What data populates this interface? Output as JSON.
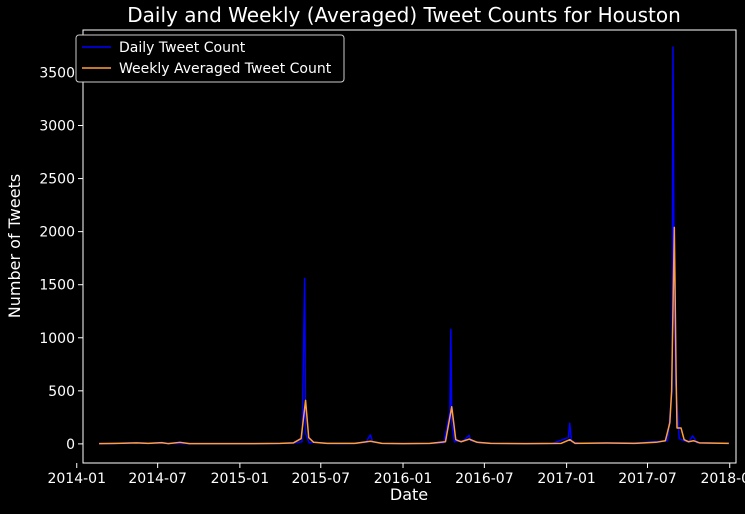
{
  "chart_data": {
    "type": "line",
    "title": "Daily and Weekly (Averaged) Tweet Counts for Houston",
    "xlabel": "Date",
    "ylabel": "Number of Tweets",
    "x_is_date": true,
    "xlim": [
      "2014-01-15",
      "2018-01-15"
    ],
    "ylim": [
      -180,
      3900
    ],
    "x_ticks": [
      "2014-01",
      "2014-07",
      "2015-01",
      "2015-07",
      "2016-01",
      "2016-07",
      "2017-01",
      "2017-07",
      "2018-01"
    ],
    "y_ticks": [
      0,
      500,
      1000,
      1500,
      2000,
      2500,
      3000,
      3500
    ],
    "grid": false,
    "legend_position": "top-left",
    "background_color": "#000000",
    "series": [
      {
        "name": "Daily Tweet Count",
        "color": "#0000ff",
        "points": [
          [
            "2014-02-20",
            5
          ],
          [
            "2014-03-20",
            3
          ],
          [
            "2014-04-25",
            10
          ],
          [
            "2014-05-15",
            12
          ],
          [
            "2014-06-10",
            6
          ],
          [
            "2014-07-10",
            8
          ],
          [
            "2014-08-15",
            4
          ],
          [
            "2014-09-10",
            3
          ],
          [
            "2014-10-15",
            2
          ],
          [
            "2014-12-01",
            2
          ],
          [
            "2015-02-01",
            3
          ],
          [
            "2015-04-01",
            5
          ],
          [
            "2015-05-01",
            8
          ],
          [
            "2015-05-20",
            20
          ],
          [
            "2015-05-26",
            1560
          ],
          [
            "2015-05-28",
            100
          ],
          [
            "2015-06-05",
            10
          ],
          [
            "2015-06-20",
            15
          ],
          [
            "2015-07-15",
            5
          ],
          [
            "2015-08-15",
            3
          ],
          [
            "2015-09-15",
            5
          ],
          [
            "2015-10-10",
            15
          ],
          [
            "2015-10-20",
            85
          ],
          [
            "2015-10-25",
            20
          ],
          [
            "2015-11-15",
            5
          ],
          [
            "2016-01-01",
            3
          ],
          [
            "2016-03-01",
            5
          ],
          [
            "2016-04-01",
            10
          ],
          [
            "2016-04-15",
            300
          ],
          [
            "2016-04-17",
            1080
          ],
          [
            "2016-04-19",
            200
          ],
          [
            "2016-04-25",
            20
          ],
          [
            "2016-05-15",
            30
          ],
          [
            "2016-05-28",
            80
          ],
          [
            "2016-06-01",
            30
          ],
          [
            "2016-06-20",
            10
          ],
          [
            "2016-08-01",
            5
          ],
          [
            "2016-10-01",
            3
          ],
          [
            "2016-12-01",
            5
          ],
          [
            "2017-01-05",
            60
          ],
          [
            "2017-01-08",
            195
          ],
          [
            "2017-01-12",
            20
          ],
          [
            "2017-02-01",
            5
          ],
          [
            "2017-04-01",
            10
          ],
          [
            "2017-06-01",
            8
          ],
          [
            "2017-07-15",
            20
          ],
          [
            "2017-08-15",
            30
          ],
          [
            "2017-08-25",
            500
          ],
          [
            "2017-08-27",
            3740
          ],
          [
            "2017-08-30",
            1200
          ],
          [
            "2017-09-02",
            580
          ],
          [
            "2017-09-10",
            50
          ],
          [
            "2017-09-20",
            30
          ],
          [
            "2017-10-01",
            20
          ],
          [
            "2017-10-10",
            75
          ],
          [
            "2017-10-20",
            10
          ],
          [
            "2017-12-30",
            5
          ]
        ]
      },
      {
        "name": "Weekly Averaged Tweet Count",
        "color": "#ff9f3a",
        "points": [
          [
            "2014-02-20",
            3
          ],
          [
            "2014-04-01",
            5
          ],
          [
            "2014-05-15",
            10
          ],
          [
            "2014-06-10",
            5
          ],
          [
            "2014-07-10",
            12
          ],
          [
            "2014-07-25",
            2
          ],
          [
            "2014-08-20",
            15
          ],
          [
            "2014-09-10",
            3
          ],
          [
            "2014-10-15",
            2
          ],
          [
            "2015-02-01",
            2
          ],
          [
            "2015-04-01",
            5
          ],
          [
            "2015-05-01",
            10
          ],
          [
            "2015-05-18",
            50
          ],
          [
            "2015-05-28",
            410
          ],
          [
            "2015-06-04",
            60
          ],
          [
            "2015-06-15",
            15
          ],
          [
            "2015-07-15",
            5
          ],
          [
            "2015-09-15",
            5
          ],
          [
            "2015-10-20",
            25
          ],
          [
            "2015-11-15",
            5
          ],
          [
            "2016-01-01",
            3
          ],
          [
            "2016-03-01",
            5
          ],
          [
            "2016-04-05",
            20
          ],
          [
            "2016-04-19",
            350
          ],
          [
            "2016-04-28",
            40
          ],
          [
            "2016-05-10",
            20
          ],
          [
            "2016-05-28",
            45
          ],
          [
            "2016-06-15",
            15
          ],
          [
            "2016-07-15",
            5
          ],
          [
            "2016-10-01",
            3
          ],
          [
            "2016-12-20",
            5
          ],
          [
            "2017-01-08",
            40
          ],
          [
            "2017-01-20",
            5
          ],
          [
            "2017-04-01",
            8
          ],
          [
            "2017-06-01",
            5
          ],
          [
            "2017-07-20",
            15
          ],
          [
            "2017-08-10",
            30
          ],
          [
            "2017-08-20",
            200
          ],
          [
            "2017-08-24",
            500
          ],
          [
            "2017-08-30",
            2040
          ],
          [
            "2017-09-03",
            650
          ],
          [
            "2017-09-05",
            150
          ],
          [
            "2017-09-14",
            150
          ],
          [
            "2017-09-21",
            40
          ],
          [
            "2017-10-01",
            20
          ],
          [
            "2017-10-12",
            30
          ],
          [
            "2017-10-25",
            10
          ],
          [
            "2017-12-30",
            5
          ]
        ]
      }
    ]
  }
}
